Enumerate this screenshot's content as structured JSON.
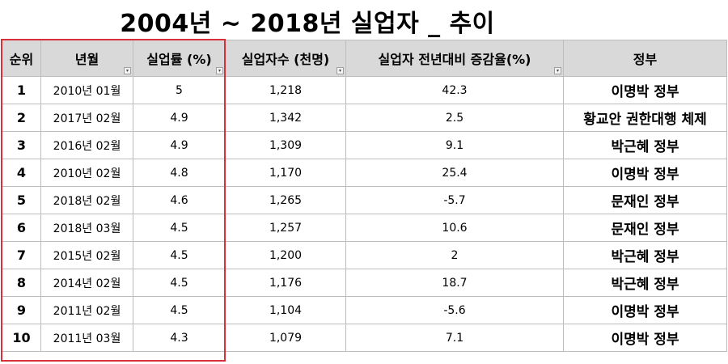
{
  "title": "2004년 ~ 2018년 실업자 _ 추이",
  "headers": {
    "rank": "순위",
    "year_month": "년월",
    "unemp_rate": "실업률 (%)",
    "unemp_count": "실업자수 (천명)",
    "change": "실업자 전년대비 증감율(%)",
    "government": "정부"
  },
  "rows": [
    {
      "rank": "1",
      "ym": "2010년 01월",
      "rate": "5",
      "count": "1,218",
      "change": "42.3",
      "gov": "이명박 정부"
    },
    {
      "rank": "2",
      "ym": "2017년 02월",
      "rate": "4.9",
      "count": "1,342",
      "change": "2.5",
      "gov": "황교안 권한대행 체제"
    },
    {
      "rank": "3",
      "ym": "2016년 02월",
      "rate": "4.9",
      "count": "1,309",
      "change": "9.1",
      "gov": "박근혜 정부"
    },
    {
      "rank": "4",
      "ym": "2010년 02월",
      "rate": "4.8",
      "count": "1,170",
      "change": "25.4",
      "gov": "이명박 정부"
    },
    {
      "rank": "5",
      "ym": "2018년 02월",
      "rate": "4.6",
      "count": "1,265",
      "change": "-5.7",
      "gov": "문재인 정부"
    },
    {
      "rank": "6",
      "ym": "2018년 03월",
      "rate": "4.5",
      "count": "1,257",
      "change": "10.6",
      "gov": "문재인 정부"
    },
    {
      "rank": "7",
      "ym": "2015년 02월",
      "rate": "4.5",
      "count": "1,200",
      "change": "2",
      "gov": "박근혜 정부"
    },
    {
      "rank": "8",
      "ym": "2014년 02월",
      "rate": "4.5",
      "count": "1,176",
      "change": "18.7",
      "gov": "박근혜 정부"
    },
    {
      "rank": "9",
      "ym": "2011년 02월",
      "rate": "4.5",
      "count": "1,104",
      "change": "-5.6",
      "gov": "이명박 정부"
    },
    {
      "rank": "10",
      "ym": "2011년 03월",
      "rate": "4.3",
      "count": "1,079",
      "change": "7.1",
      "gov": "이명박 정부"
    }
  ],
  "colors": {
    "header_bg": "#d9d9d9",
    "highlight": "#d7303a",
    "border": "#bdbdbd"
  },
  "icons": {
    "filter": "filter-dropdown-icon",
    "sort": "sort-filter-icon"
  }
}
